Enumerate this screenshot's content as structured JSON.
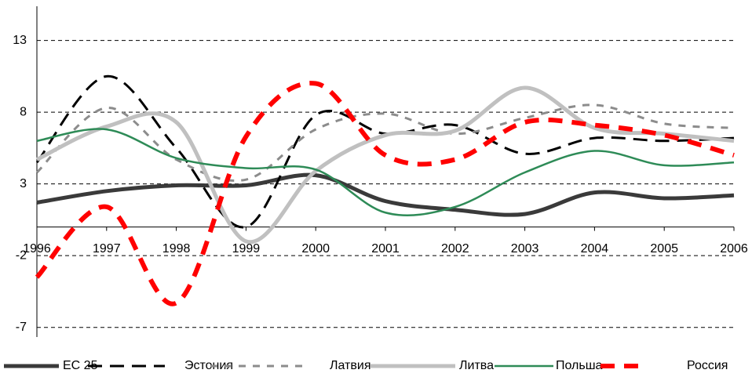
{
  "chart_data": {
    "type": "line",
    "categories": [
      "1996",
      "1997",
      "1998",
      "1999",
      "2000",
      "2001",
      "2002",
      "2003",
      "2004",
      "2005",
      "2006"
    ],
    "series": [
      {
        "name": "ЕС 25",
        "color": "#3a3a3a",
        "values": [
          1.7,
          2.5,
          2.9,
          2.9,
          3.6,
          1.8,
          1.2,
          0.9,
          2.4,
          2.0,
          2.2
        ]
      },
      {
        "name": "Эстония",
        "color": "#000000",
        "values": [
          4.5,
          10.5,
          5.5,
          0,
          7.8,
          6.5,
          7.1,
          5.1,
          6.2,
          6.0,
          6.2
        ]
      },
      {
        "name": "Латвия",
        "color": "#8c8c8c",
        "values": [
          3.8,
          8.3,
          4.7,
          3.3,
          6.8,
          7.9,
          6.5,
          7.6,
          8.5,
          7.2,
          6.9
        ]
      },
      {
        "name": "Литва",
        "color": "#c0c0c0",
        "values": [
          4.7,
          7.0,
          7.3,
          -1.0,
          3.9,
          6.4,
          6.7,
          9.7,
          6.9,
          6.5,
          6.0
        ]
      },
      {
        "name": "Польша",
        "color": "#2e8b57",
        "values": [
          6.0,
          6.8,
          4.8,
          4.1,
          4.0,
          1.0,
          1.4,
          3.8,
          5.3,
          4.3,
          4.5
        ]
      },
      {
        "name": "Россия",
        "color": "#ff0000",
        "values": [
          -3.5,
          1.4,
          -5.3,
          6.3,
          10.0,
          5.0,
          4.7,
          7.3,
          7.1,
          6.4,
          5.0
        ]
      }
    ],
    "ylim": [
      -8,
      15
    ],
    "yticks": [
      -7,
      -2,
      3,
      8,
      13
    ],
    "grid": true
  }
}
